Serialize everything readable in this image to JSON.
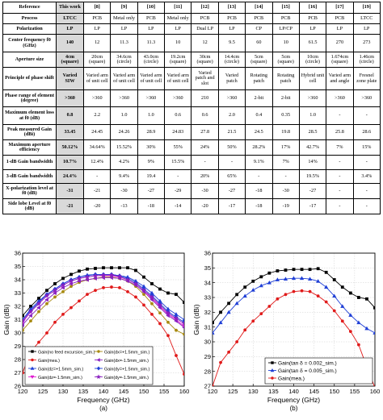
{
  "table": {
    "headers": [
      "Reference",
      "This work",
      "[8]",
      "[9]",
      "[10]",
      "[11]",
      "[12]",
      "[13]",
      "[14]",
      "[15]",
      "[16]",
      "[17]",
      "[19]"
    ],
    "rows": [
      {
        "label": "Process",
        "cells": [
          "LTCC",
          "PCB",
          "Metal only",
          "PCB",
          "Metal only",
          "PCB",
          "PCB",
          "PCB",
          "PCB",
          "PCB",
          "PCB",
          "LTCC"
        ]
      },
      {
        "label": "Polarization",
        "cells": [
          "LP",
          "LP",
          "LP",
          "LP",
          "LP",
          "Dual LP",
          "LP",
          "CP",
          "LP/CP",
          "LP",
          "LP",
          "LP"
        ]
      },
      {
        "label": "Center frequency f0 (GHz)",
        "cells": [
          "140",
          "12",
          "11.3",
          "11.3",
          "10",
          "12",
          "9.5",
          "60",
          "10",
          "61.5",
          "270",
          "273"
        ]
      },
      {
        "label": "Aperture size",
        "cells": [
          "4cm (square)",
          "20cm (square)",
          "34.6cm (circle)",
          "43.0cm (circle)",
          "19.2cm (square)",
          "30cm (square)",
          "14.4cm (circle)",
          "5cm (square)",
          "5cm (square)",
          "10cm (circle)",
          "1.674cm (square)",
          "1.46cm (circle)"
        ]
      },
      {
        "label": "Principle of phase shift",
        "cells": [
          "Varied SIW",
          "Varied arm of unit cell",
          "Varied arm of unit cell",
          "Varied arm of unit cell",
          "Varied arm of unit cell",
          "Varied patch and slot",
          "Varied patch",
          "Rotating patch",
          "Rotating patch",
          "Hybrid unit cell",
          "Varied arm and angle",
          "Fresnel zone plate"
        ]
      },
      {
        "label": "Phase range of element (degree)",
        "cells": [
          ">360",
          ">360",
          ">360",
          ">360",
          ">360",
          "210",
          ">360",
          "2-bit",
          "2-bit",
          ">360",
          ">360",
          ">360"
        ]
      },
      {
        "label": "Maximum element loss at f0 (dB)",
        "cells": [
          "0.8",
          "2.2",
          "1.0",
          "1.0",
          "0.6",
          "0.6",
          "2.0",
          "0.4",
          "0.35",
          "1.0",
          "-",
          "-"
        ]
      },
      {
        "label": "Peak measured Gain (dBi)",
        "cells": [
          "33.45",
          "24.45",
          "24.26",
          "28.9",
          "24.83",
          "27.8",
          "21.5",
          "24.5",
          "19.8",
          "28.5",
          "25.8",
          "28.6"
        ]
      },
      {
        "label": "Maximum aperture efficiency",
        "cells": [
          "50.12%",
          "34.64%",
          "15.52%",
          "30%",
          "55%",
          "24%",
          "50%",
          "28.2%",
          "17%",
          "42.7%",
          "7%",
          "15%"
        ]
      },
      {
        "label": "1-dB Gain bandwidth",
        "cells": [
          "10.7%",
          "12.4%",
          "4.2%",
          "9%",
          "15.5%",
          "-",
          "-",
          "9.1%",
          "7%",
          "14%",
          "-",
          "-"
        ]
      },
      {
        "label": "3-dB Gain bandwidth",
        "cells": [
          "24.4%",
          "-",
          "9.4%",
          "19.4",
          "-",
          "20%",
          "65%",
          "-",
          "-",
          "19.5%",
          "-",
          "3.4%"
        ]
      },
      {
        "label": "X-polarization level at f0 (dB)",
        "cells": [
          "-31",
          "-21",
          "-30",
          "-27",
          "-29",
          "-30",
          "-27",
          "-18",
          "-30",
          "-27",
          "-",
          "-"
        ]
      },
      {
        "label": "Side lobe Level at f0 (dB)",
        "cells": [
          "-21",
          "-20",
          "-13",
          "-18",
          "-14",
          "-20",
          "-17",
          "-18",
          "-19",
          "-17",
          "-",
          "-"
        ]
      }
    ]
  },
  "colors": {
    "black": "#000000",
    "blue": "#1f3fd6",
    "magenta": "#e01ad0",
    "olive": "#a88a10",
    "purple": "#8a20c0",
    "red": "#e01a1a",
    "shade": "#d9d9d9"
  },
  "chart_data": [
    {
      "type": "line",
      "caption": "(a)",
      "xlabel": "Frequency (GHz)",
      "ylabel": "Gain (dBi)",
      "xlim": [
        120,
        160
      ],
      "ylim": [
        26,
        36
      ],
      "xticks": [
        120,
        125,
        130,
        135,
        140,
        145,
        150,
        155,
        160
      ],
      "yticks": [
        26,
        27,
        28,
        29,
        30,
        31,
        32,
        33,
        34,
        35,
        36
      ],
      "x": [
        120,
        122,
        124,
        126,
        128,
        130,
        132,
        134,
        136,
        138,
        140,
        142,
        144,
        146,
        148,
        150,
        152,
        154,
        156,
        158,
        160
      ],
      "series": [
        {
          "name": "Gain(no feed excursion_sim.)",
          "color": "#000000",
          "marker": "square",
          "values": [
            31.3,
            32.0,
            32.6,
            33.2,
            33.7,
            34.1,
            34.4,
            34.65,
            34.8,
            34.85,
            34.9,
            34.9,
            34.9,
            34.9,
            34.7,
            34.2,
            33.7,
            33.3,
            33.0,
            32.9,
            32.3
          ]
        },
        {
          "name": "Gain(mea.)",
          "color": "#e01a1a",
          "marker": "circle",
          "values": [
            27.0,
            28.6,
            29.3,
            30.0,
            30.8,
            31.4,
            31.9,
            32.4,
            32.9,
            33.2,
            33.4,
            33.45,
            33.4,
            33.1,
            32.7,
            32.1,
            31.4,
            30.7,
            29.8,
            28.3,
            26.9
          ]
        },
        {
          "name": "Gain(dz=+1.5mm_sim.)",
          "color": "#1f3fd6",
          "marker": "triangle",
          "values": [
            31.0,
            31.8,
            32.4,
            32.9,
            33.3,
            33.7,
            34.0,
            34.2,
            34.35,
            34.4,
            34.4,
            34.4,
            34.3,
            34.2,
            33.9,
            33.5,
            33.0,
            32.4,
            31.8,
            31.4,
            31.0
          ]
        },
        {
          "name": "Gain(dz=-1.5mm_sim.)",
          "color": "#e01ad0",
          "marker": "triangle-down",
          "values": [
            30.8,
            31.6,
            32.2,
            32.8,
            33.2,
            33.6,
            33.9,
            34.1,
            34.2,
            34.3,
            34.3,
            34.3,
            34.2,
            34.0,
            33.7,
            33.2,
            32.6,
            32.0,
            31.4,
            31.0,
            30.5
          ]
        },
        {
          "name": "Gain(dx=+1.5mm_sim.)",
          "color": "#a88a10",
          "marker": "circle",
          "values": [
            30.2,
            30.9,
            31.6,
            32.2,
            32.7,
            33.1,
            33.5,
            33.8,
            34.0,
            34.1,
            34.2,
            34.2,
            34.1,
            33.9,
            33.5,
            32.9,
            32.2,
            31.5,
            30.8,
            30.2,
            29.9
          ]
        },
        {
          "name": "Gain(dx=-1.5mm_sim.)",
          "color": "#8a20c0",
          "marker": "triangle-left",
          "values": [
            30.6,
            31.3,
            31.9,
            32.5,
            33.0,
            33.4,
            33.7,
            33.9,
            34.0,
            34.1,
            34.15,
            34.15,
            34.1,
            33.9,
            33.6,
            33.1,
            32.5,
            31.9,
            31.3,
            30.9,
            30.4
          ]
        },
        {
          "name": "Gain(dy=+1.5mm_sim.)",
          "color": "#1f3fd6",
          "marker": "diamond",
          "values": [
            31.0,
            31.7,
            32.3,
            32.9,
            33.3,
            33.7,
            34.0,
            34.2,
            34.3,
            34.4,
            34.4,
            34.4,
            34.3,
            34.1,
            33.8,
            33.3,
            32.8,
            32.2,
            31.6,
            31.2,
            30.8
          ]
        },
        {
          "name": "Gain(dy=-1.5mm_sim.)",
          "color": "#8a20c0",
          "marker": "star",
          "values": [
            30.9,
            31.6,
            32.2,
            32.8,
            33.2,
            33.6,
            33.9,
            34.1,
            34.2,
            34.3,
            34.35,
            34.35,
            34.25,
            34.0,
            33.7,
            33.2,
            32.7,
            32.1,
            31.5,
            31.1,
            30.7
          ]
        }
      ]
    },
    {
      "type": "line",
      "caption": "(b)",
      "xlabel": "Frequency (GHz)",
      "ylabel": "Gain (dBi)",
      "xlim": [
        120,
        160
      ],
      "ylim": [
        27,
        36
      ],
      "xticks": [
        120,
        125,
        130,
        135,
        140,
        145,
        150,
        155,
        160
      ],
      "yticks": [
        27,
        28,
        29,
        30,
        31,
        32,
        33,
        34,
        35,
        36
      ],
      "x": [
        120,
        122,
        124,
        126,
        128,
        130,
        132,
        134,
        136,
        138,
        140,
        142,
        144,
        146,
        148,
        150,
        152,
        154,
        156,
        158,
        160
      ],
      "series": [
        {
          "name": "Gain(tan δ = 0.002_sim.)",
          "color": "#000000",
          "marker": "square",
          "values": [
            31.3,
            32.0,
            32.6,
            33.2,
            33.7,
            34.1,
            34.4,
            34.65,
            34.8,
            34.85,
            34.9,
            34.9,
            34.9,
            34.95,
            34.7,
            34.2,
            33.7,
            33.3,
            33.0,
            32.9,
            32.3
          ]
        },
        {
          "name": "Gain(tan δ = 0.005_sim.)",
          "color": "#1f3fd6",
          "marker": "triangle",
          "values": [
            30.6,
            31.3,
            32.0,
            32.6,
            33.1,
            33.5,
            33.8,
            34.0,
            34.2,
            34.25,
            34.3,
            34.3,
            34.25,
            34.1,
            33.7,
            33.1,
            32.4,
            31.8,
            31.3,
            30.9,
            30.6
          ]
        },
        {
          "name": "Gain(mea.)",
          "color": "#e01a1a",
          "marker": "circle",
          "values": [
            27.0,
            28.6,
            29.3,
            30.0,
            30.8,
            31.4,
            31.9,
            32.4,
            32.9,
            33.2,
            33.4,
            33.45,
            33.4,
            33.1,
            32.7,
            32.1,
            31.4,
            30.7,
            29.8,
            28.3,
            26.9
          ]
        }
      ]
    }
  ]
}
